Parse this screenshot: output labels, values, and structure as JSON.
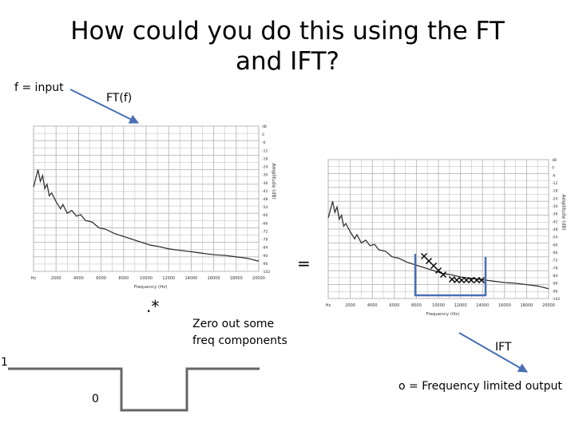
{
  "slide": {
    "title": "How could you do this using the FT and IFT?",
    "f_label": "f = input",
    "ft_label": "FT(f)",
    "equals": "=",
    "multiply": ".*",
    "zero_out_line1": "Zero out some",
    "zero_out_line2": "freq components",
    "ift_label": "IFT",
    "output_label": "o = Frequency limited output",
    "step_high": "1",
    "step_low": "0"
  },
  "plots": {
    "x_axis_label": "Frequency (Hz)",
    "y_axis_label": "Amplitude (dB)",
    "x_ticks": [
      "Hz",
      "2000",
      "4000",
      "6000",
      "8000",
      "10000",
      "12000",
      "14000",
      "16000",
      "18000",
      "20000"
    ],
    "y_ticks": [
      "dB",
      "0",
      "-6",
      "-12",
      "-18",
      "-24",
      "-30",
      "-36",
      "-42",
      "-48",
      "-54",
      "-60",
      "-66",
      "-72",
      "-78",
      "-84",
      "-90",
      "-96",
      "-102"
    ]
  },
  "colors": {
    "mask_box": "#4a6fb5",
    "arrow": "#4a6fb5",
    "step": "#666666",
    "grid": "#b8b8b8",
    "spectrum": "#333333"
  }
}
